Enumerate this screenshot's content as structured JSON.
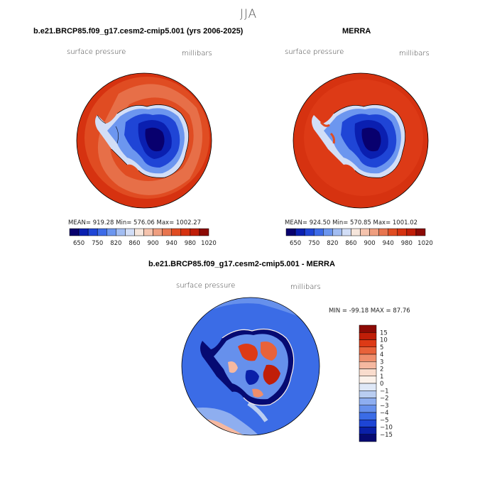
{
  "figure": {
    "season": "JJA"
  },
  "panels": [
    {
      "title": "b.e21.BRCP85.f09_g17.cesm2-cmip5.001 (yrs 2006-2025)",
      "variable": "surface pressure",
      "units": "millibars",
      "stats": "MEAN= 919.28   Min= 576.06   Max= 1002.27"
    },
    {
      "title": "MERRA",
      "variable": "surface pressure",
      "units": "millibars",
      "stats": "MEAN= 924.50   Min= 570.85   Max= 1001.02"
    },
    {
      "title": "b.e21.BRCP85.f09_g17.cesm2-cmip5.001 - MERRA",
      "variable": "surface pressure",
      "units": "millibars",
      "stats": "MIN = -99.18 MAX =  87.76"
    }
  ],
  "colorbar_abs": {
    "labels": [
      "650",
      "750",
      "820",
      "860",
      "900",
      "940",
      "980",
      "1020"
    ],
    "colors": [
      "#08006e",
      "#0a1fb0",
      "#1f45d6",
      "#3d6be8",
      "#6c96ef",
      "#a2bdf2",
      "#d2def7",
      "#f6e6dc",
      "#f5c3ad",
      "#ef9e7f",
      "#e8754f",
      "#e04c22",
      "#d63210",
      "#c01e08",
      "#8c0a05"
    ]
  },
  "colorbar_diff": {
    "labels": [
      "15",
      "10",
      "5",
      "4",
      "3",
      "2",
      "1",
      "0",
      "−1",
      "−2",
      "−3",
      "−4",
      "−5",
      "−10",
      "−15"
    ],
    "colors": [
      "#8c0a05",
      "#c01e08",
      "#dd3a16",
      "#e8623a",
      "#ef8e6c",
      "#f5b8a0",
      "#f9dccd",
      "#fbf1ea",
      "#dfe8f7",
      "#b9cdf1",
      "#8eaef0",
      "#6690ec",
      "#3b6ce6",
      "#1d45d5",
      "#0a20a8",
      "#060a72"
    ]
  },
  "icons": {
    "map_shape": "polar-stereographic-antarctica"
  }
}
